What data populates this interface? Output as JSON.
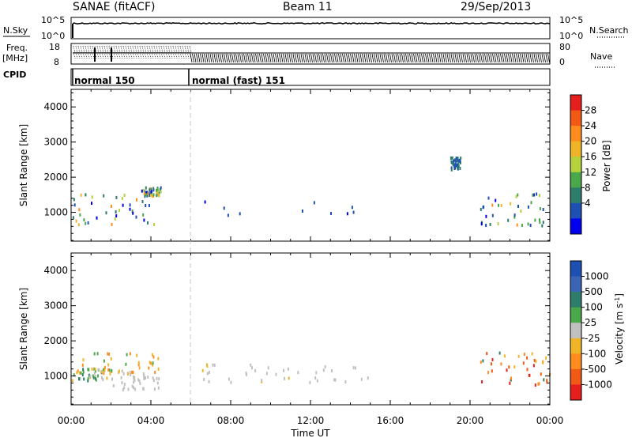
{
  "header": {
    "station": "SANAE (fitACF)",
    "beam": "Beam 11",
    "date": "29/Sep/2013"
  },
  "sky_panel": {
    "left_label": "N.Sky",
    "right_label": "N.Search",
    "left_ticks": [
      "10^5",
      "10^0"
    ],
    "right_ticks": [
      "10^5",
      "10^0"
    ]
  },
  "freq_panel": {
    "left_label_1": "Freq.",
    "left_label_2": "[MHz]",
    "left_ticks": [
      "18",
      "8"
    ],
    "right_label": "Nave",
    "right_ticks": [
      "80",
      "0"
    ]
  },
  "cpid": {
    "label": "CPID",
    "modes": [
      {
        "name": "normal 150",
        "start_hour": 0,
        "end_hour": 5.9
      },
      {
        "name": "normal (fast) 151",
        "start_hour": 5.9,
        "end_hour": 24
      }
    ]
  },
  "x_axis": {
    "label": "Time UT",
    "range_hours": [
      0,
      24
    ],
    "ticks": [
      "00:00",
      "04:00",
      "08:00",
      "12:00",
      "16:00",
      "20:00",
      "00:00"
    ]
  },
  "chart_data": [
    {
      "type": "heatmap",
      "title": "",
      "xlabel": "Time UT",
      "ylabel": "Slant Range [km]",
      "ylim": [
        180,
        4500
      ],
      "yticks": [
        1000,
        2000,
        3000,
        4000
      ],
      "colorbar": {
        "label": "Power [dB]",
        "ticks": [
          "28",
          "24",
          "20",
          "16",
          "12",
          "8",
          "4"
        ],
        "range": [
          0,
          30
        ],
        "colors": [
          "#0000ee",
          "#1e50b4",
          "#2e7d6b",
          "#4aa84a",
          "#b4d23c",
          "#f0b428",
          "#ff8c1e",
          "#f05a14",
          "#e61e1e"
        ]
      },
      "scatter_regions": [
        {
          "t": [
            0.0,
            4.5
          ],
          "r": [
            650,
            1550
          ],
          "val": "mixed 4-20 dB"
        },
        {
          "t": [
            3.5,
            4.5
          ],
          "r": [
            1500,
            1750
          ],
          "val": "mixed 8-16 dB"
        },
        {
          "t": [
            6.5,
            15.0
          ],
          "r": [
            850,
            1400
          ],
          "val": "low 4-8 dB"
        },
        {
          "t": [
            19.0,
            19.5
          ],
          "r": [
            2200,
            2600
          ],
          "val": "low 4-12 dB"
        },
        {
          "t": [
            20.5,
            24.0
          ],
          "r": [
            650,
            1650
          ],
          "val": "mixed 4-24 dB"
        }
      ]
    },
    {
      "type": "heatmap",
      "title": "",
      "xlabel": "Time UT",
      "ylabel": "Slant Range [km]",
      "ylim": [
        180,
        4500
      ],
      "yticks": [
        1000,
        2000,
        3000,
        4000
      ],
      "colorbar": {
        "label": "Velocity [m s^-1]",
        "ticks": [
          "1000",
          "500",
          "100",
          "25",
          "-25",
          "-100",
          "-500",
          "-1000"
        ],
        "colors": [
          "#1e50b4",
          "#3c64b4",
          "#2e7d6b",
          "#4aa84a",
          "#c0c0c0",
          "#f0b428",
          "#ff8c1e",
          "#f05a14",
          "#e61e1e"
        ]
      },
      "scatter_regions": [
        {
          "t": [
            0.0,
            2.0
          ],
          "r": [
            900,
            1250
          ],
          "val": "-100 to 100"
        },
        {
          "t": [
            2.0,
            4.5
          ],
          "r": [
            650,
            1200
          ],
          "val": "-25 to 25"
        },
        {
          "t": [
            0.0,
            4.5
          ],
          "r": [
            1100,
            1700
          ],
          "val": "-500 to -25"
        },
        {
          "t": [
            6.5,
            15.0
          ],
          "r": [
            850,
            1400
          ],
          "val": "-25 to 25"
        },
        {
          "t": [
            20.5,
            24.0
          ],
          "r": [
            750,
            1700
          ],
          "val": "-1000 to -100"
        }
      ]
    }
  ]
}
